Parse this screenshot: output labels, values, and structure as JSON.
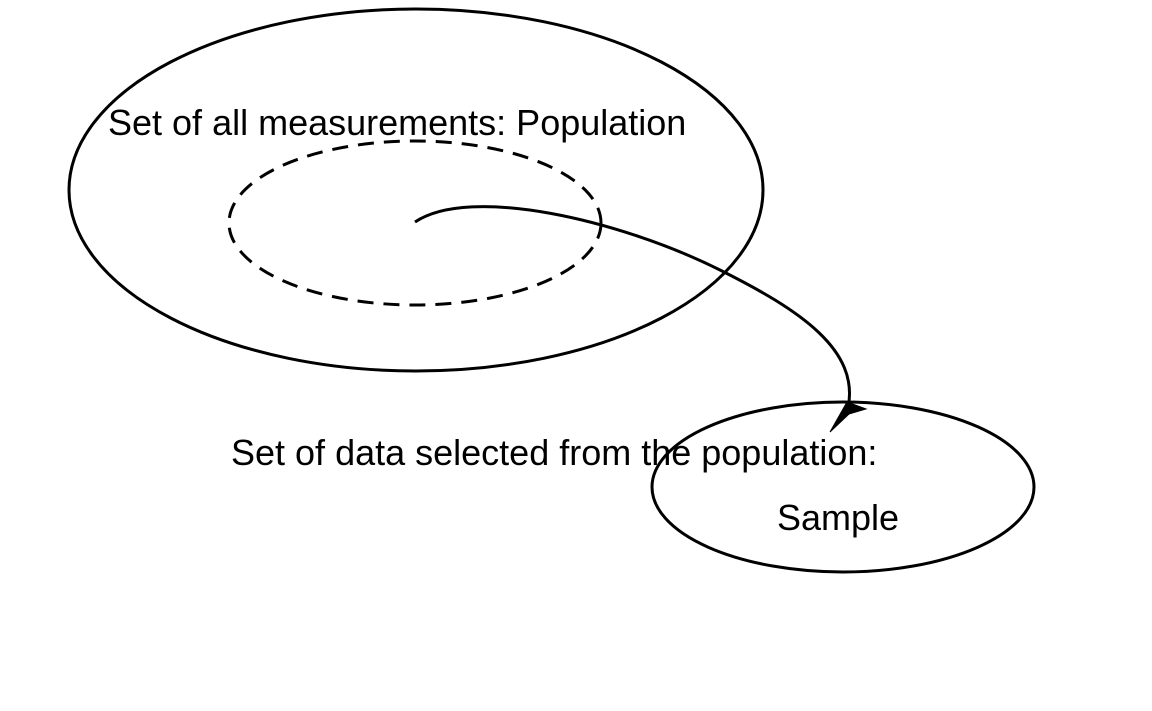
{
  "diagram": {
    "population_label": "Set of all measurements: Population",
    "sample_caption": "Set of data selected from the population:",
    "sample_label": "Sample"
  },
  "colors": {
    "stroke": "#000000",
    "background": "#ffffff"
  }
}
